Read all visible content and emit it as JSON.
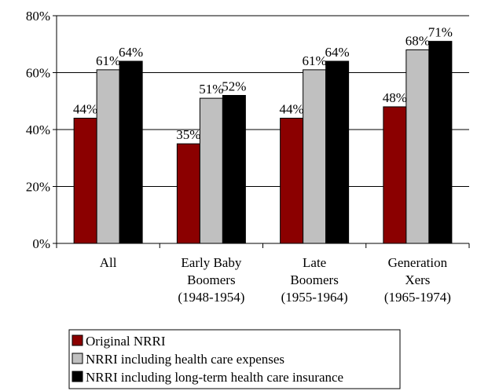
{
  "chart_data": {
    "type": "bar",
    "categories": [
      "All",
      "Early Baby\nBoomers\n(1948-1954)",
      "Late\nBoomers\n(1955-1964)",
      "Generation\nXers\n(1965-1974)"
    ],
    "series": [
      {
        "name": "Original NRRI",
        "color": "#8b0000",
        "values": [
          44,
          35,
          44,
          48
        ],
        "value_labels": [
          "44%",
          "35%",
          "44%",
          "48%"
        ]
      },
      {
        "name": "NRRI including health care expenses",
        "color": "#c0c0c0",
        "values": [
          61,
          51,
          61,
          68
        ],
        "value_labels": [
          "61%",
          "51%",
          "61%",
          "68%"
        ]
      },
      {
        "name": "NRRI including long-term health care insurance",
        "color": "#000000",
        "values": [
          64,
          52,
          64,
          71
        ],
        "value_labels": [
          "64%",
          "52%",
          "64%",
          "71%"
        ]
      }
    ],
    "ylim": [
      0,
      80
    ],
    "yticks": [
      {
        "value": 0,
        "label": "0%"
      },
      {
        "value": 20,
        "label": "20%"
      },
      {
        "value": 40,
        "label": "40%"
      },
      {
        "value": 60,
        "label": "60%"
      },
      {
        "value": 80,
        "label": "80%"
      }
    ],
    "grid": true
  }
}
